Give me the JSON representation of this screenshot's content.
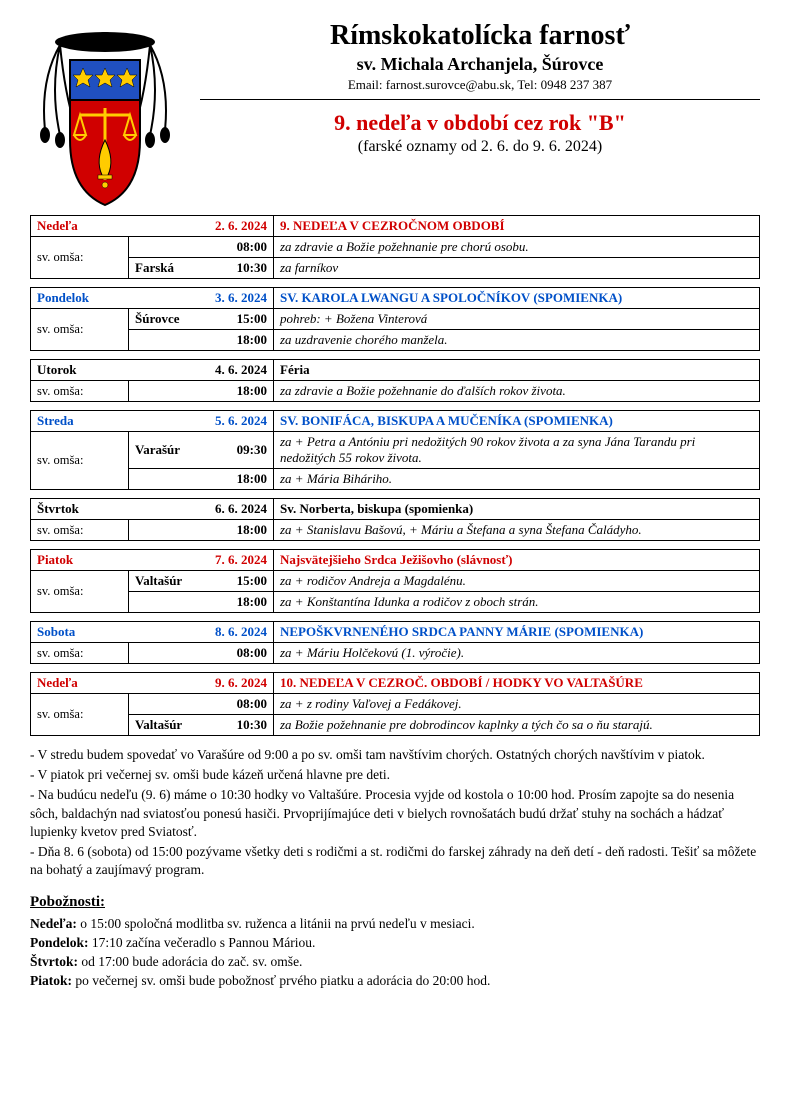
{
  "header": {
    "parish_name": "Rímskokatolícka farnosť",
    "parish_sub": "sv. Michala Archanjela, Šúrovce",
    "contact": "Email: farnost.surovce@abu.sk, Tel: 0948 237 387",
    "week_title": "9. nedeľa v období cez rok \"B\"",
    "week_range": "(farské oznamy od 2. 6. do 9. 6. 2024)"
  },
  "days": [
    {
      "day_name": "Nedeľa",
      "date": "2. 6. 2024",
      "color": "red",
      "feast": "9. NEDEĽA V CEZROČNOM OBDOBÍ",
      "mass_label": "sv. omša:",
      "rows": [
        {
          "place": "",
          "time": "08:00",
          "intention": "za zdravie a Božie požehnanie pre chorú osobu."
        },
        {
          "place": "Farská",
          "time": "10:30",
          "intention": "za farníkov"
        }
      ]
    },
    {
      "day_name": "Pondelok",
      "date": "3. 6. 2024",
      "color": "blue",
      "feast": "SV. KAROLA LWANGU A SPOLOČNÍKOV (SPOMIENKA)",
      "mass_label": "sv. omša:",
      "rows": [
        {
          "place": "Šúrovce",
          "time": "15:00",
          "intention": "pohreb: + Božena Vinterová"
        },
        {
          "place": "",
          "time": "18:00",
          "intention": "za uzdravenie chorého manžela."
        }
      ]
    },
    {
      "day_name": "Utorok",
      "date": "4. 6. 2024",
      "color": "black",
      "feast": "Féria",
      "mass_label": "sv. omša:",
      "rows": [
        {
          "place": "",
          "time": "18:00",
          "intention": "za zdravie a Božie požehnanie do ďalších rokov života."
        }
      ]
    },
    {
      "day_name": "Streda",
      "date": "5. 6. 2024",
      "color": "blue",
      "feast": "SV. BONIFÁCA, BISKUPA A MUČENÍKA (SPOMIENKA)",
      "mass_label": "sv. omša:",
      "rows": [
        {
          "place": "Varašúr",
          "time": "09:30",
          "intention": "za + Petra a Antóniu pri nedožitých 90 rokov života a za syna Jána Tarandu pri nedožitých 55 rokov života."
        },
        {
          "place": "",
          "time": "18:00",
          "intention": "za + Mária Biháriho."
        }
      ]
    },
    {
      "day_name": "Štvrtok",
      "date": "6. 6. 2024",
      "color": "black",
      "feast": "Sv. Norberta, biskupa (spomienka)",
      "mass_label": "sv. omša:",
      "rows": [
        {
          "place": "",
          "time": "18:00",
          "intention": "za + Stanislavu Bašovú, + Máriu a Štefana a syna Štefana Čaládyho."
        }
      ]
    },
    {
      "day_name": "Piatok",
      "date": "7. 6. 2024",
      "color": "red",
      "feast": "Najsvätejšieho Srdca Ježišovho (slávnosť)",
      "mass_label": "sv. omša:",
      "rows": [
        {
          "place": "Valtašúr",
          "time": "15:00",
          "intention": "za + rodičov Andreja a Magdalénu."
        },
        {
          "place": "",
          "time": "18:00",
          "intention": "za + Konštantína Idunka a rodičov z oboch strán."
        }
      ]
    },
    {
      "day_name": "Sobota",
      "date": "8. 6. 2024",
      "color": "blue",
      "feast": "NEPOŠKVRNENÉHO SRDCA PANNY MÁRIE (SPOMIENKA)",
      "mass_label": "sv. omša:",
      "rows": [
        {
          "place": "",
          "time": "08:00",
          "intention": "za + Máriu Holčekovú (1. výročie)."
        }
      ]
    },
    {
      "day_name": "Nedeľa",
      "date": "9. 6. 2024",
      "color": "red",
      "feast": "10. NEDEĽA V CEZROČ. OBDOBÍ / HODKY VO VALTAŠÚRE",
      "mass_label": "sv. omša:",
      "rows": [
        {
          "place": "",
          "time": "08:00",
          "intention": "za + z rodiny Vaľovej a Fedákovej."
        },
        {
          "place": "Valtašúr",
          "time": "10:30",
          "intention": "za Božie požehnanie pre dobrodincov kaplnky a tých čo sa o ňu starajú."
        }
      ]
    }
  ],
  "notes": [
    "- V stredu budem spovedať vo Varašúre od 9:00 a po sv. omši tam navštívim chorých. Ostatných chorých navštívim v piatok.",
    "- V piatok pri večernej sv. omši bude kázeň určená hlavne pre deti.",
    "- Na budúcu nedeľu (9. 6) máme o 10:30 hodky vo Valtašúre. Procesia vyjde od kostola o 10:00 hod. Prosím zapojte sa do nesenia sôch, baldachýn nad sviatosťou ponesú hasiči. Prvoprijímajúce deti v bielych rovnošatách budú držať stuhy na sochách a hádzať lupienky kvetov pred Sviatosť.",
    "- Dňa 8. 6 (sobota) od 15:00 pozývame všetky deti s rodičmi a st. rodičmi do farskej záhrady na deň detí - deň radosti. Tešiť sa môžete na bohatý a zaujímavý program."
  ],
  "devotions_title": "Pobožnosti:",
  "devotions": [
    {
      "day": "Nedeľa:",
      "text": " o 15:00 spoločná modlitba sv. ruženca a litánii na prvú nedeľu v mesiaci."
    },
    {
      "day": "Pondelok:",
      "text": " 17:10 začína večeradlo s Pannou Máriou."
    },
    {
      "day": "Štvrtok:",
      "text": " od 17:00 bude adorácia do zač. sv. omše."
    },
    {
      "day": "Piatok:",
      "text": " po večernej sv. omši bude pobožnosť prvého piatku a adorácia do 20:00 hod."
    }
  ]
}
